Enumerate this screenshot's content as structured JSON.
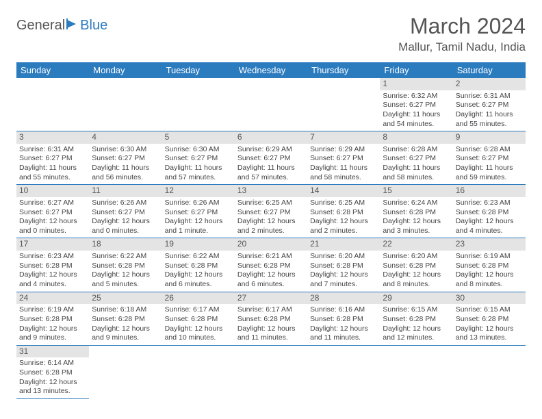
{
  "logo": {
    "text1": "General",
    "text2": "Blue"
  },
  "title": "March 2024",
  "location": "Mallur, Tamil Nadu, India",
  "colors": {
    "header_bg": "#2b7bbf",
    "header_fg": "#ffffff",
    "daynum_bg": "#e4e4e4",
    "row_border": "#2b7bbf",
    "page_bg": "#ffffff",
    "text": "#444444"
  },
  "typography": {
    "title_fontsize": 32,
    "location_fontsize": 17,
    "dayheader_fontsize": 13,
    "daynum_fontsize": 12,
    "body_fontsize": 10.5
  },
  "calendar": {
    "columns": [
      "Sunday",
      "Monday",
      "Tuesday",
      "Wednesday",
      "Thursday",
      "Friday",
      "Saturday"
    ],
    "first_weekday_index": 5,
    "days": [
      {
        "n": 1,
        "sunrise": "6:32 AM",
        "sunset": "6:27 PM",
        "daylight": "11 hours and 54 minutes."
      },
      {
        "n": 2,
        "sunrise": "6:31 AM",
        "sunset": "6:27 PM",
        "daylight": "11 hours and 55 minutes."
      },
      {
        "n": 3,
        "sunrise": "6:31 AM",
        "sunset": "6:27 PM",
        "daylight": "11 hours and 55 minutes."
      },
      {
        "n": 4,
        "sunrise": "6:30 AM",
        "sunset": "6:27 PM",
        "daylight": "11 hours and 56 minutes."
      },
      {
        "n": 5,
        "sunrise": "6:30 AM",
        "sunset": "6:27 PM",
        "daylight": "11 hours and 57 minutes."
      },
      {
        "n": 6,
        "sunrise": "6:29 AM",
        "sunset": "6:27 PM",
        "daylight": "11 hours and 57 minutes."
      },
      {
        "n": 7,
        "sunrise": "6:29 AM",
        "sunset": "6:27 PM",
        "daylight": "11 hours and 58 minutes."
      },
      {
        "n": 8,
        "sunrise": "6:28 AM",
        "sunset": "6:27 PM",
        "daylight": "11 hours and 58 minutes."
      },
      {
        "n": 9,
        "sunrise": "6:28 AM",
        "sunset": "6:27 PM",
        "daylight": "11 hours and 59 minutes."
      },
      {
        "n": 10,
        "sunrise": "6:27 AM",
        "sunset": "6:27 PM",
        "daylight": "12 hours and 0 minutes."
      },
      {
        "n": 11,
        "sunrise": "6:26 AM",
        "sunset": "6:27 PM",
        "daylight": "12 hours and 0 minutes."
      },
      {
        "n": 12,
        "sunrise": "6:26 AM",
        "sunset": "6:27 PM",
        "daylight": "12 hours and 1 minute."
      },
      {
        "n": 13,
        "sunrise": "6:25 AM",
        "sunset": "6:27 PM",
        "daylight": "12 hours and 2 minutes."
      },
      {
        "n": 14,
        "sunrise": "6:25 AM",
        "sunset": "6:28 PM",
        "daylight": "12 hours and 2 minutes."
      },
      {
        "n": 15,
        "sunrise": "6:24 AM",
        "sunset": "6:28 PM",
        "daylight": "12 hours and 3 minutes."
      },
      {
        "n": 16,
        "sunrise": "6:23 AM",
        "sunset": "6:28 PM",
        "daylight": "12 hours and 4 minutes."
      },
      {
        "n": 17,
        "sunrise": "6:23 AM",
        "sunset": "6:28 PM",
        "daylight": "12 hours and 4 minutes."
      },
      {
        "n": 18,
        "sunrise": "6:22 AM",
        "sunset": "6:28 PM",
        "daylight": "12 hours and 5 minutes."
      },
      {
        "n": 19,
        "sunrise": "6:22 AM",
        "sunset": "6:28 PM",
        "daylight": "12 hours and 6 minutes."
      },
      {
        "n": 20,
        "sunrise": "6:21 AM",
        "sunset": "6:28 PM",
        "daylight": "12 hours and 6 minutes."
      },
      {
        "n": 21,
        "sunrise": "6:20 AM",
        "sunset": "6:28 PM",
        "daylight": "12 hours and 7 minutes."
      },
      {
        "n": 22,
        "sunrise": "6:20 AM",
        "sunset": "6:28 PM",
        "daylight": "12 hours and 8 minutes."
      },
      {
        "n": 23,
        "sunrise": "6:19 AM",
        "sunset": "6:28 PM",
        "daylight": "12 hours and 8 minutes."
      },
      {
        "n": 24,
        "sunrise": "6:19 AM",
        "sunset": "6:28 PM",
        "daylight": "12 hours and 9 minutes."
      },
      {
        "n": 25,
        "sunrise": "6:18 AM",
        "sunset": "6:28 PM",
        "daylight": "12 hours and 9 minutes."
      },
      {
        "n": 26,
        "sunrise": "6:17 AM",
        "sunset": "6:28 PM",
        "daylight": "12 hours and 10 minutes."
      },
      {
        "n": 27,
        "sunrise": "6:17 AM",
        "sunset": "6:28 PM",
        "daylight": "12 hours and 11 minutes."
      },
      {
        "n": 28,
        "sunrise": "6:16 AM",
        "sunset": "6:28 PM",
        "daylight": "12 hours and 11 minutes."
      },
      {
        "n": 29,
        "sunrise": "6:15 AM",
        "sunset": "6:28 PM",
        "daylight": "12 hours and 12 minutes."
      },
      {
        "n": 30,
        "sunrise": "6:15 AM",
        "sunset": "6:28 PM",
        "daylight": "12 hours and 13 minutes."
      },
      {
        "n": 31,
        "sunrise": "6:14 AM",
        "sunset": "6:28 PM",
        "daylight": "12 hours and 13 minutes."
      }
    ]
  }
}
